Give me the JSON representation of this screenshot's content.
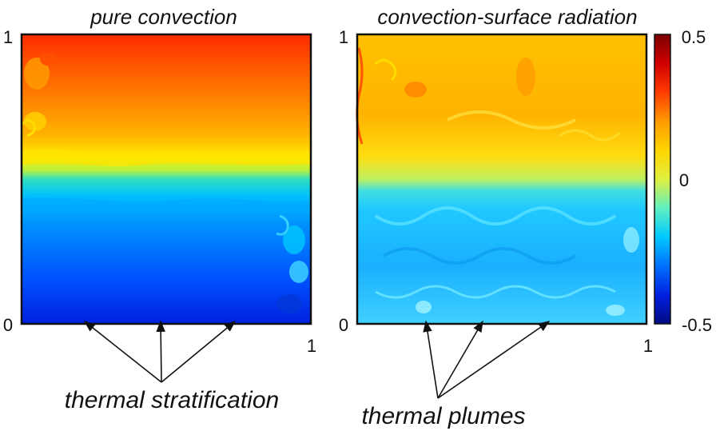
{
  "panels": [
    {
      "title": "pure convection",
      "x_min": "0",
      "x_max": "1",
      "y_min": "0",
      "y_max": "1"
    },
    {
      "title": "convection-surface radiation",
      "x_max": "1",
      "y_min": "0",
      "y_max": "1"
    }
  ],
  "colorbar": {
    "max_label": "0.5",
    "mid_label": "0",
    "min_label": "-0.5",
    "colors": [
      "#000a80",
      "#0020e0",
      "#0070ff",
      "#00c8ff",
      "#60f0c0",
      "#e0f040",
      "#ffd400",
      "#ff9a00",
      "#ff3c00",
      "#d00000",
      "#7a0000"
    ]
  },
  "annotations": {
    "left": "thermal stratification",
    "right": "thermal plumes"
  },
  "colors": {
    "frame": "#111111",
    "arrow": "#111111"
  }
}
